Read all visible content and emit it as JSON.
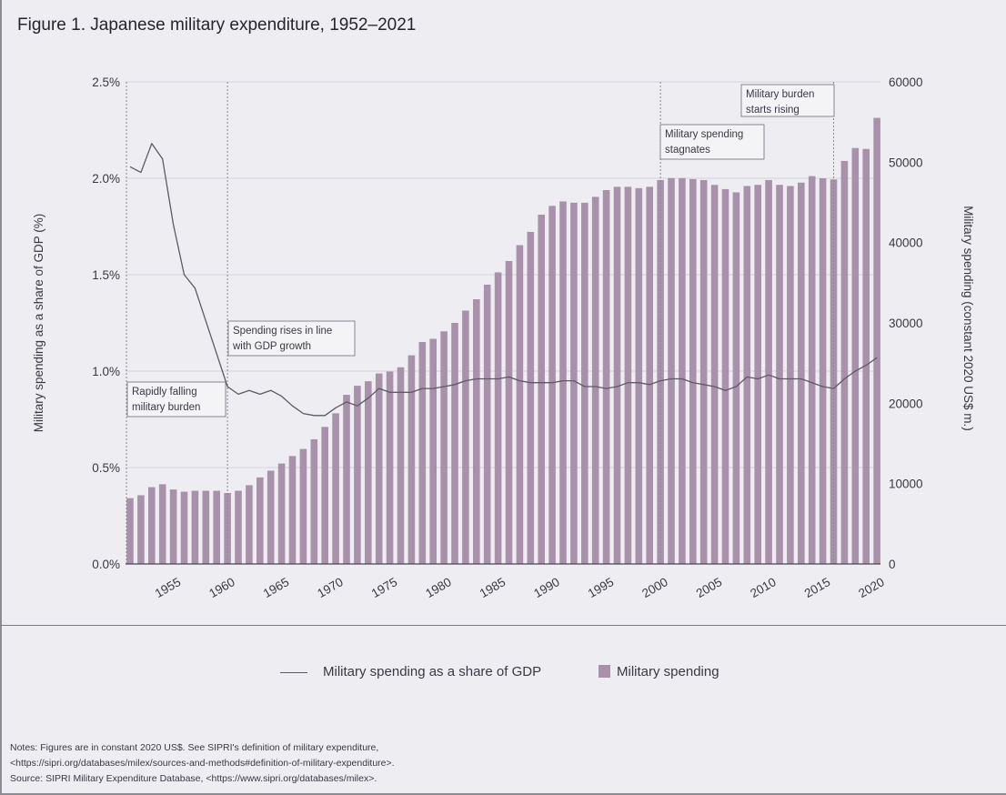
{
  "title": "Figure 1. Japanese military expenditure, 1952–2021",
  "chart_data": {
    "type": "bar+line",
    "title": "Figure 1. Japanese military expenditure, 1952–2021",
    "x": [
      1952,
      1953,
      1954,
      1955,
      1956,
      1957,
      1958,
      1959,
      1960,
      1961,
      1962,
      1963,
      1964,
      1965,
      1966,
      1967,
      1968,
      1969,
      1970,
      1971,
      1972,
      1973,
      1974,
      1975,
      1976,
      1977,
      1978,
      1979,
      1980,
      1981,
      1982,
      1983,
      1984,
      1985,
      1986,
      1987,
      1988,
      1989,
      1990,
      1991,
      1992,
      1993,
      1994,
      1995,
      1996,
      1997,
      1998,
      1999,
      2000,
      2001,
      2002,
      2003,
      2004,
      2005,
      2006,
      2007,
      2008,
      2009,
      2010,
      2011,
      2012,
      2013,
      2014,
      2015,
      2016,
      2017,
      2018,
      2019,
      2020,
      2021
    ],
    "x_tick_labels": [
      "1955",
      "1960",
      "1965",
      "1970",
      "1975",
      "1980",
      "1985",
      "1990",
      "1995",
      "2000",
      "2005",
      "2010",
      "2015",
      "2020"
    ],
    "series": [
      {
        "name": "Military spending as a share of GDP",
        "type": "line",
        "axis": "left",
        "color": "#5c5a64",
        "values": [
          2.06,
          2.03,
          2.18,
          2.1,
          1.76,
          1.5,
          1.43,
          1.26,
          1.09,
          0.92,
          0.88,
          0.9,
          0.88,
          0.9,
          0.87,
          0.82,
          0.78,
          0.77,
          0.77,
          0.81,
          0.84,
          0.82,
          0.86,
          0.91,
          0.89,
          0.89,
          0.89,
          0.91,
          0.91,
          0.92,
          0.93,
          0.95,
          0.96,
          0.96,
          0.96,
          0.97,
          0.95,
          0.94,
          0.94,
          0.94,
          0.95,
          0.95,
          0.92,
          0.92,
          0.91,
          0.92,
          0.94,
          0.94,
          0.93,
          0.95,
          0.96,
          0.96,
          0.94,
          0.93,
          0.92,
          0.9,
          0.92,
          0.97,
          0.96,
          0.98,
          0.96,
          0.96,
          0.96,
          0.94,
          0.92,
          0.91,
          0.96,
          1.0,
          1.03,
          1.07
        ]
      },
      {
        "name": "Military spending",
        "type": "bar",
        "axis": "right",
        "color": "#a991ab",
        "values": [
          8190,
          8550,
          9560,
          9920,
          9270,
          8990,
          9110,
          9110,
          9110,
          8830,
          9110,
          9800,
          10770,
          11610,
          12500,
          13430,
          14310,
          15520,
          17060,
          18750,
          21050,
          22180,
          22740,
          23710,
          23950,
          24480,
          25970,
          27620,
          28020,
          28950,
          30000,
          31530,
          32940,
          34760,
          36290,
          37700,
          39680,
          41330,
          43470,
          44560,
          45120,
          44960,
          44960,
          45690,
          46530,
          46940,
          46940,
          46770,
          46940,
          47780,
          48020,
          48020,
          47900,
          47780,
          47180,
          46650,
          46250,
          47040,
          47180,
          47780,
          47180,
          47040,
          47460,
          48270,
          48000,
          47860,
          50160,
          51770,
          51650,
          55520
        ]
      }
    ],
    "left_axis": {
      "label": "Military spending as a share of GDP (%)",
      "ylim": [
        0,
        2.5
      ],
      "ticks": [
        "0.0%",
        "0.5%",
        "1.0%",
        "1.5%",
        "2.0%",
        "2.5%"
      ]
    },
    "right_axis": {
      "label": "Military spending (constant 2020 US$ m.)",
      "ylim": [
        0,
        60000
      ],
      "ticks": [
        "0",
        "10000",
        "20000",
        "30000",
        "40000",
        "50000",
        "60000"
      ]
    },
    "grid": true,
    "legend_position": "bottom",
    "annotations": [
      {
        "year": 1952,
        "lines": [
          "Rapidly falling",
          "military burden"
        ]
      },
      {
        "year": 1961,
        "lines": [
          "Spending rises in line",
          "with GDP growth"
        ]
      },
      {
        "year": 2001,
        "lines": [
          "Military spending",
          "stagnates"
        ]
      },
      {
        "year": 2017,
        "lines": [
          "Military burden",
          "starts rising"
        ]
      }
    ]
  },
  "legend": {
    "line_label": "Military spending as a share of GDP",
    "bar_label": "Military spending"
  },
  "notes": {
    "line1": "Notes: Figures are in constant 2020 US$. See SIPRI's definition of military expenditure,",
    "line2": "<https://sipri.org/databases/milex/sources-and-methods#definition-of-military-expenditure>.",
    "line3": "Source: SIPRI Military Expenditure Database, <https://www.sipri.org/databases/milex>."
  }
}
